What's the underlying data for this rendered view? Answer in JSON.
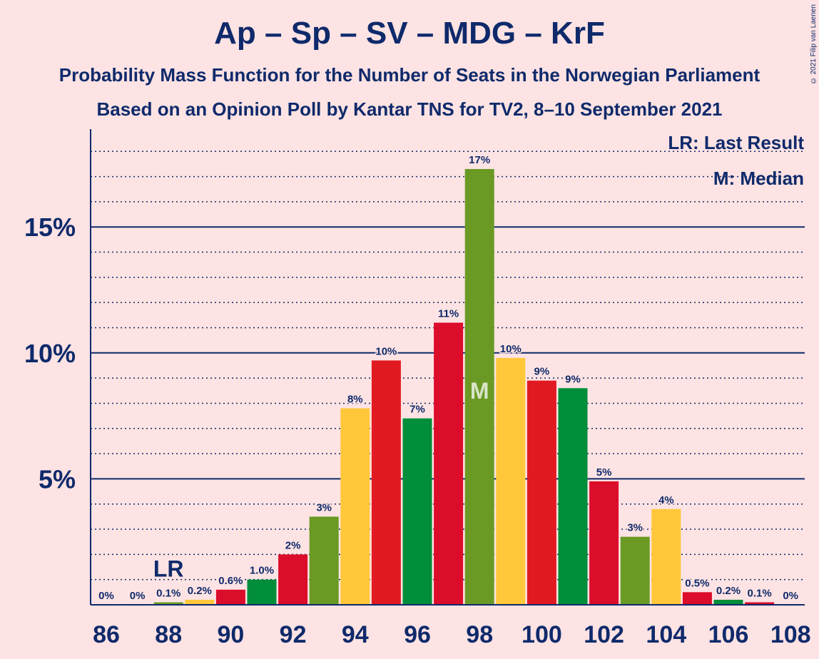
{
  "title": "Ap – Sp – SV – MDG – KrF",
  "subtitle1": "Probability Mass Function for the Number of Seats in the Norwegian Parliament",
  "subtitle2": "Based on an Opinion Poll by Kantar TNS for TV2, 8–10 September 2021",
  "copyright": "© 2021 Filip van Laenen",
  "legend": {
    "last_result": "LR: Last Result",
    "median": "M: Median"
  },
  "colors": {
    "background": "#FDE3E3",
    "text": "#0F2A6B",
    "Ap": "#E11A22",
    "Sp": "#008E3A",
    "SV": "#6A9A24",
    "MDG": "#FFC83A",
    "KrF": "#DC0C2B"
  },
  "chart_data": {
    "type": "bar",
    "x": [
      86,
      87,
      88,
      89,
      90,
      91,
      92,
      93,
      94,
      95,
      96,
      97,
      98,
      99,
      100,
      101,
      102,
      103,
      104,
      105,
      106,
      107,
      108
    ],
    "values": [
      0,
      0,
      0.1,
      0.2,
      0.6,
      1.0,
      2.0,
      3.5,
      7.8,
      9.7,
      7.4,
      11.2,
      17.3,
      9.8,
      8.9,
      8.6,
      4.9,
      2.7,
      3.8,
      0.5,
      0.2,
      0.1,
      0
    ],
    "labels": [
      "0%",
      "0%",
      "0.1%",
      "0.2%",
      "0.6%",
      "1.0%",
      "2%",
      "3%",
      "8%",
      "10%",
      "7%",
      "11%",
      "17%",
      "10%",
      "9%",
      "9%",
      "5%",
      "3%",
      "4%",
      "0.5%",
      "0.2%",
      "0.1%",
      "0%"
    ],
    "bar_colors": [
      "#6A9A24",
      "#FFC83A",
      "#6A9A24",
      "#FFC83A",
      "#DC0C2B",
      "#008E3A",
      "#DC0C2B",
      "#6A9A24",
      "#FFC83A",
      "#E11A22",
      "#008E3A",
      "#DC0C2B",
      "#6A9A24",
      "#FFC83A",
      "#E11A22",
      "#008E3A",
      "#DC0C2B",
      "#6A9A24",
      "#FFC83A",
      "#DC0C2B",
      "#008E3A",
      "#DC0C2B",
      "#6A9A24"
    ],
    "x_ticks": [
      86,
      88,
      90,
      92,
      94,
      96,
      98,
      100,
      102,
      104,
      106,
      108
    ],
    "x_tick_labels": [
      "86",
      "88",
      "90",
      "92",
      "94",
      "96",
      "98",
      "100",
      "102",
      "104",
      "106",
      "108"
    ],
    "y_ticks": [
      5,
      10,
      15
    ],
    "y_tick_labels": [
      "5%",
      "10%",
      "15%"
    ],
    "ylim": [
      0,
      18.8
    ],
    "minor_grid_step": 1,
    "last_result_seat": 88,
    "last_result_label": "LR",
    "median_seat": 98,
    "median_label": "M"
  }
}
